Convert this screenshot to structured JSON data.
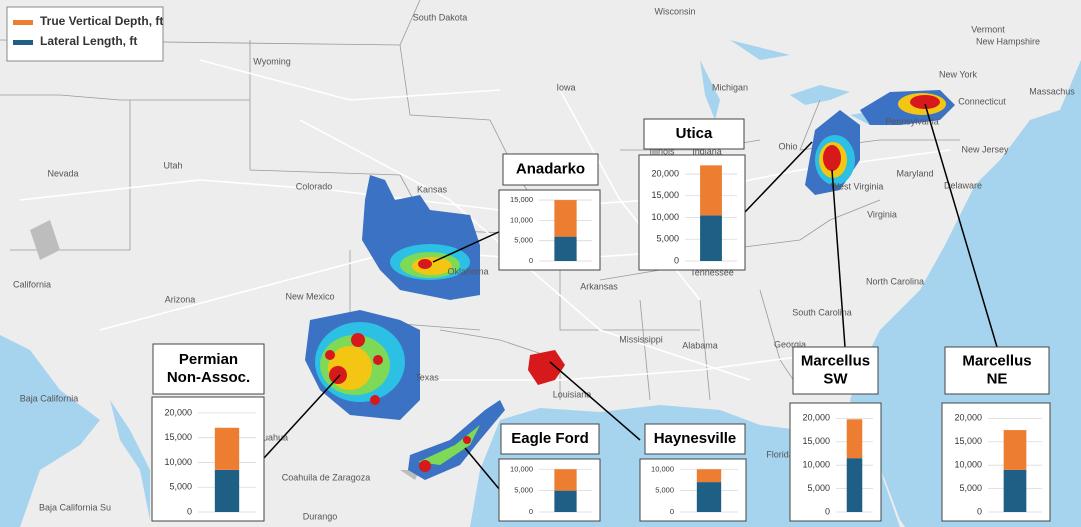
{
  "legend": [
    {
      "name": "True Vertical Depth, ft",
      "color": "#ed7d31"
    },
    {
      "name": "Lateral Length, ft",
      "color": "#1f5f85"
    }
  ],
  "map": {
    "labels": [
      "Wyoming",
      "South Dakota",
      "Wisconsin",
      "Michigan",
      "Iowa",
      "Nevada",
      "Utah",
      "Colorado",
      "Kansas",
      "Illinois",
      "Indiana",
      "Ohio",
      "Pennsylvania",
      "New York",
      "Vermont",
      "New Hampshire",
      "Massachus",
      "Connecticut",
      "New Jersey",
      "Maryland",
      "Delaware",
      "West Virginia",
      "Virginia",
      "Tennessee",
      "North Carolina",
      "South Carolina",
      "Georgia",
      "Alabama",
      "Mississippi",
      "Louisiana",
      "Arkansas",
      "Oklahoma",
      "Texas",
      "New Mexico",
      "Arizona",
      "California",
      "Baja California",
      "Baja California Su",
      "Coahuila de Zaragoza",
      "Durango",
      "ihuahua",
      "Florida"
    ]
  },
  "chart_data": [
    {
      "type": "bar",
      "title": [
        "Anadarko"
      ],
      "ylim": [
        0,
        16000
      ],
      "yticks": [
        0,
        {
          "value": 5000,
          "label": "5,000"
        },
        {
          "value": 10000,
          "label": "10,000"
        },
        {
          "value": 15000,
          "label": "15,000"
        }
      ],
      "series": [
        {
          "values": [
            9000
          ]
        },
        {
          "values": [
            6000
          ]
        }
      ]
    },
    {
      "type": "bar",
      "title": [
        "Utica"
      ],
      "ylim": [
        0,
        23000
      ],
      "yticks": [
        0,
        {
          "value": 5000,
          "label": "5,000"
        },
        {
          "value": 10000,
          "label": "10,000"
        },
        {
          "value": 15000,
          "label": "15,000"
        },
        {
          "value": 20000,
          "label": "20,000"
        }
      ],
      "series": [
        {
          "values": [
            11500
          ]
        },
        {
          "values": [
            10500
          ]
        }
      ]
    },
    {
      "type": "bar",
      "title": [
        "Permian",
        "Non-Assoc."
      ],
      "ylim": [
        0,
        22000
      ],
      "yticks": [
        0,
        {
          "value": 5000,
          "label": "5,000"
        },
        {
          "value": 10000,
          "label": "10,000"
        },
        {
          "value": 15000,
          "label": "15,000"
        },
        {
          "value": 20000,
          "label": "20,000"
        }
      ],
      "series": [
        {
          "values": [
            8500
          ]
        },
        {
          "values": [
            8500
          ]
        }
      ]
    },
    {
      "type": "bar",
      "title": [
        "Eagle Ford"
      ],
      "ylim": [
        0,
        11000
      ],
      "yticks": [
        0,
        {
          "value": 5000,
          "label": "5,000"
        },
        {
          "value": 10000,
          "label": "10,000"
        }
      ],
      "series": [
        {
          "values": [
            5000
          ]
        },
        {
          "values": [
            5000
          ]
        }
      ]
    },
    {
      "type": "bar",
      "title": [
        "Haynesville"
      ],
      "ylim": [
        0,
        11000
      ],
      "yticks": [
        0,
        {
          "value": 5000,
          "label": "5,000"
        },
        {
          "value": 10000,
          "label": "10,000"
        }
      ],
      "series": [
        {
          "values": [
            3000
          ]
        },
        {
          "values": [
            7000
          ]
        }
      ]
    },
    {
      "type": "bar",
      "title": [
        "Marcellus",
        "SW"
      ],
      "ylim": [
        0,
        22000
      ],
      "yticks": [
        0,
        {
          "value": 5000,
          "label": "5,000"
        },
        {
          "value": 10000,
          "label": "10,000"
        },
        {
          "value": 15000,
          "label": "15,000"
        },
        {
          "value": 20000,
          "label": "20,000"
        }
      ],
      "series": [
        {
          "values": [
            8300
          ]
        },
        {
          "values": [
            11500
          ]
        }
      ]
    },
    {
      "type": "bar",
      "title": [
        "Marcellus",
        "NE"
      ],
      "ylim": [
        0,
        22000
      ],
      "yticks": [
        0,
        {
          "value": 5000,
          "label": "5,000"
        },
        {
          "value": 10000,
          "label": "10,000"
        },
        {
          "value": 15000,
          "label": "15,000"
        },
        {
          "value": 20000,
          "label": "20,000"
        }
      ],
      "series": [
        {
          "values": [
            8500
          ]
        },
        {
          "values": [
            9000
          ]
        }
      ]
    }
  ]
}
